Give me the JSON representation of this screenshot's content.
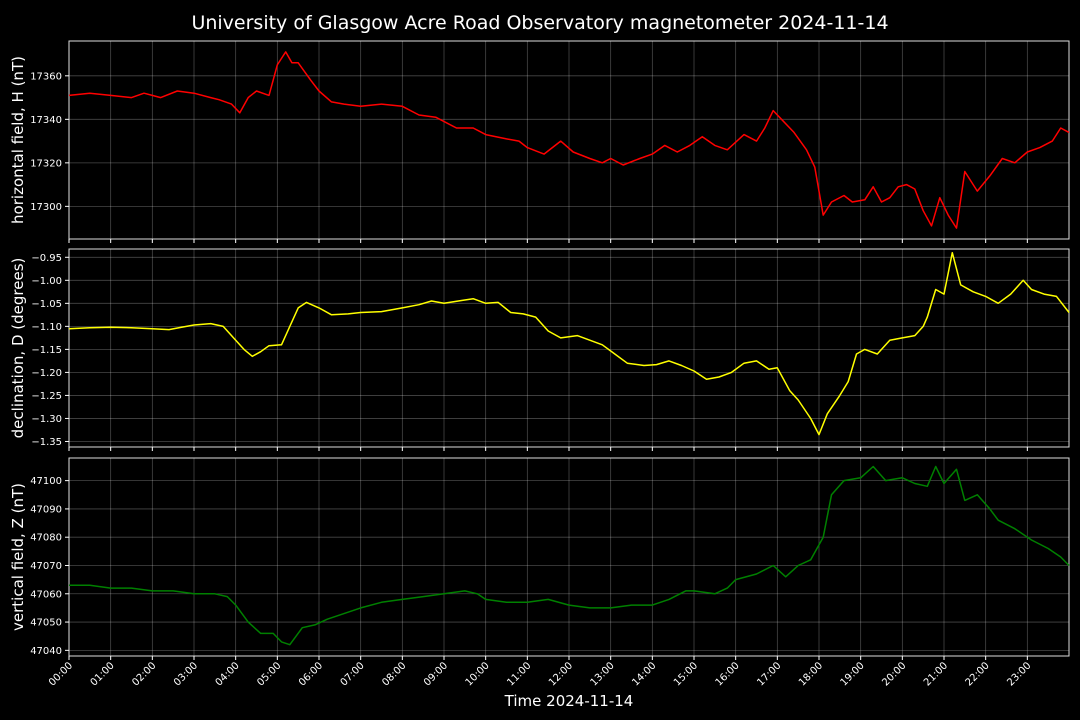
{
  "chart_data": {
    "type": "line",
    "title": "University of Glasgow Acre Road Observatory magnetometer 2024-11-14",
    "xlabel": "Time 2024-11-14",
    "x_ticks": [
      "00:00",
      "01:00",
      "02:00",
      "03:00",
      "04:00",
      "05:00",
      "06:00",
      "07:00",
      "08:00",
      "09:00",
      "10:00",
      "11:00",
      "12:00",
      "13:00",
      "14:00",
      "15:00",
      "16:00",
      "17:00",
      "18:00",
      "19:00",
      "20:00",
      "21:00",
      "22:00",
      "23:00"
    ],
    "xlim_hours": [
      0,
      24
    ],
    "panels": [
      {
        "ylabel": "horizontal field, H (nT)",
        "color": "#ff0000",
        "ylim": [
          17285,
          17376
        ],
        "yticks": [
          17300,
          17320,
          17340,
          17360
        ],
        "ytick_labels": [
          "17300",
          "17320",
          "17340",
          "17360"
        ],
        "grid": true,
        "points": [
          [
            0,
            17351
          ],
          [
            0.5,
            17352
          ],
          [
            1.0,
            17351
          ],
          [
            1.5,
            17350
          ],
          [
            1.8,
            17352
          ],
          [
            2.0,
            17351
          ],
          [
            2.2,
            17350
          ],
          [
            2.6,
            17353
          ],
          [
            3.0,
            17352
          ],
          [
            3.4,
            17350
          ],
          [
            3.6,
            17349
          ],
          [
            3.9,
            17347
          ],
          [
            4.1,
            17343
          ],
          [
            4.3,
            17350
          ],
          [
            4.5,
            17353
          ],
          [
            4.8,
            17351
          ],
          [
            5.0,
            17365
          ],
          [
            5.2,
            17371
          ],
          [
            5.35,
            17366
          ],
          [
            5.5,
            17366
          ],
          [
            5.8,
            17358
          ],
          [
            6.0,
            17353
          ],
          [
            6.3,
            17348
          ],
          [
            6.6,
            17347
          ],
          [
            7.0,
            17346
          ],
          [
            7.5,
            17347
          ],
          [
            8.0,
            17346
          ],
          [
            8.4,
            17342
          ],
          [
            8.8,
            17341
          ],
          [
            9.3,
            17336
          ],
          [
            9.7,
            17336
          ],
          [
            10.0,
            17333
          ],
          [
            10.5,
            17331
          ],
          [
            10.8,
            17330
          ],
          [
            11.0,
            17327
          ],
          [
            11.4,
            17324
          ],
          [
            11.8,
            17330
          ],
          [
            12.1,
            17325
          ],
          [
            12.5,
            17322
          ],
          [
            12.8,
            17320
          ],
          [
            13.0,
            17322
          ],
          [
            13.3,
            17319
          ],
          [
            13.7,
            17322
          ],
          [
            14.0,
            17324
          ],
          [
            14.3,
            17328
          ],
          [
            14.6,
            17325
          ],
          [
            14.9,
            17328
          ],
          [
            15.2,
            17332
          ],
          [
            15.5,
            17328
          ],
          [
            15.8,
            17326
          ],
          [
            16.2,
            17333
          ],
          [
            16.5,
            17330
          ],
          [
            16.7,
            17336
          ],
          [
            16.9,
            17344
          ],
          [
            17.1,
            17340
          ],
          [
            17.4,
            17334
          ],
          [
            17.7,
            17326
          ],
          [
            17.9,
            17318
          ],
          [
            18.1,
            17296
          ],
          [
            18.3,
            17302
          ],
          [
            18.6,
            17305
          ],
          [
            18.8,
            17302
          ],
          [
            19.1,
            17303
          ],
          [
            19.3,
            17309
          ],
          [
            19.5,
            17302
          ],
          [
            19.7,
            17304
          ],
          [
            19.9,
            17309
          ],
          [
            20.1,
            17310
          ],
          [
            20.3,
            17308
          ],
          [
            20.5,
            17298
          ],
          [
            20.7,
            17291
          ],
          [
            20.9,
            17304
          ],
          [
            21.1,
            17296
          ],
          [
            21.3,
            17290
          ],
          [
            21.5,
            17316
          ],
          [
            21.8,
            17307
          ],
          [
            22.1,
            17314
          ],
          [
            22.4,
            17322
          ],
          [
            22.7,
            17320
          ],
          [
            23.0,
            17325
          ],
          [
            23.3,
            17327
          ],
          [
            23.6,
            17330
          ],
          [
            23.8,
            17336
          ],
          [
            24.0,
            17334
          ]
        ]
      },
      {
        "ylabel": "declination, D (degrees)",
        "color": "#ffff00",
        "ylim": [
          -1.362,
          -0.932
        ],
        "yticks": [
          -1.35,
          -1.3,
          -1.25,
          -1.2,
          -1.15,
          -1.1,
          -1.05,
          -1.0,
          -0.95
        ],
        "ytick_labels": [
          "−1.35",
          "−1.30",
          "−1.25",
          "−1.20",
          "−1.15",
          "−1.10",
          "−1.05",
          "−1.00",
          "−0.95"
        ],
        "grid": true,
        "points": [
          [
            0,
            -1.105
          ],
          [
            0.5,
            -1.103
          ],
          [
            1.0,
            -1.102
          ],
          [
            1.5,
            -1.103
          ],
          [
            2.0,
            -1.105
          ],
          [
            2.4,
            -1.107
          ],
          [
            2.7,
            -1.102
          ],
          [
            3.0,
            -1.097
          ],
          [
            3.4,
            -1.094
          ],
          [
            3.7,
            -1.1
          ],
          [
            4.0,
            -1.13
          ],
          [
            4.2,
            -1.15
          ],
          [
            4.4,
            -1.165
          ],
          [
            4.6,
            -1.155
          ],
          [
            4.8,
            -1.142
          ],
          [
            5.1,
            -1.14
          ],
          [
            5.3,
            -1.1
          ],
          [
            5.5,
            -1.06
          ],
          [
            5.7,
            -1.048
          ],
          [
            6.0,
            -1.06
          ],
          [
            6.3,
            -1.075
          ],
          [
            6.7,
            -1.073
          ],
          [
            7.0,
            -1.07
          ],
          [
            7.5,
            -1.068
          ],
          [
            8.0,
            -1.06
          ],
          [
            8.4,
            -1.053
          ],
          [
            8.7,
            -1.045
          ],
          [
            9.0,
            -1.05
          ],
          [
            9.4,
            -1.044
          ],
          [
            9.7,
            -1.04
          ],
          [
            10.0,
            -1.05
          ],
          [
            10.3,
            -1.048
          ],
          [
            10.6,
            -1.07
          ],
          [
            10.9,
            -1.073
          ],
          [
            11.2,
            -1.08
          ],
          [
            11.5,
            -1.11
          ],
          [
            11.8,
            -1.125
          ],
          [
            12.2,
            -1.12
          ],
          [
            12.5,
            -1.13
          ],
          [
            12.8,
            -1.14
          ],
          [
            13.1,
            -1.16
          ],
          [
            13.4,
            -1.18
          ],
          [
            13.8,
            -1.185
          ],
          [
            14.1,
            -1.183
          ],
          [
            14.4,
            -1.175
          ],
          [
            14.7,
            -1.185
          ],
          [
            15.0,
            -1.197
          ],
          [
            15.3,
            -1.215
          ],
          [
            15.6,
            -1.21
          ],
          [
            15.9,
            -1.2
          ],
          [
            16.2,
            -1.18
          ],
          [
            16.5,
            -1.175
          ],
          [
            16.8,
            -1.193
          ],
          [
            17.0,
            -1.19
          ],
          [
            17.3,
            -1.24
          ],
          [
            17.5,
            -1.26
          ],
          [
            17.8,
            -1.3
          ],
          [
            18.0,
            -1.335
          ],
          [
            18.2,
            -1.29
          ],
          [
            18.5,
            -1.25
          ],
          [
            18.7,
            -1.22
          ],
          [
            18.9,
            -1.16
          ],
          [
            19.1,
            -1.15
          ],
          [
            19.4,
            -1.16
          ],
          [
            19.7,
            -1.13
          ],
          [
            20.0,
            -1.125
          ],
          [
            20.3,
            -1.12
          ],
          [
            20.5,
            -1.1
          ],
          [
            20.6,
            -1.08
          ],
          [
            20.8,
            -1.02
          ],
          [
            21.0,
            -1.03
          ],
          [
            21.2,
            -0.94
          ],
          [
            21.4,
            -1.01
          ],
          [
            21.7,
            -1.025
          ],
          [
            22.0,
            -1.035
          ],
          [
            22.3,
            -1.05
          ],
          [
            22.6,
            -1.03
          ],
          [
            22.9,
            -1.0
          ],
          [
            23.1,
            -1.02
          ],
          [
            23.4,
            -1.03
          ],
          [
            23.7,
            -1.035
          ],
          [
            24.0,
            -1.07
          ]
        ]
      },
      {
        "ylabel": "vertical field, Z (nT)",
        "color": "#008000",
        "ylim": [
          47038,
          47108
        ],
        "yticks": [
          47040,
          47050,
          47060,
          47070,
          47080,
          47090,
          47100
        ],
        "ytick_labels": [
          "47040",
          "47050",
          "47060",
          "47070",
          "47080",
          "47090",
          "47100"
        ],
        "grid": true,
        "points": [
          [
            0,
            47063
          ],
          [
            0.5,
            47063
          ],
          [
            1.0,
            47062
          ],
          [
            1.5,
            47062
          ],
          [
            2.0,
            47061
          ],
          [
            2.5,
            47061
          ],
          [
            3.0,
            47060
          ],
          [
            3.5,
            47060
          ],
          [
            3.8,
            47059
          ],
          [
            4.0,
            47056
          ],
          [
            4.3,
            47050
          ],
          [
            4.6,
            47046
          ],
          [
            4.9,
            47046
          ],
          [
            5.1,
            47043
          ],
          [
            5.3,
            47042
          ],
          [
            5.6,
            47048
          ],
          [
            5.9,
            47049
          ],
          [
            6.2,
            47051
          ],
          [
            6.6,
            47053
          ],
          [
            7.0,
            47055
          ],
          [
            7.5,
            47057
          ],
          [
            8.0,
            47058
          ],
          [
            8.5,
            47059
          ],
          [
            9.0,
            47060
          ],
          [
            9.5,
            47061
          ],
          [
            9.8,
            47060
          ],
          [
            10.0,
            47058
          ],
          [
            10.5,
            47057
          ],
          [
            11.0,
            47057
          ],
          [
            11.5,
            47058
          ],
          [
            12.0,
            47056
          ],
          [
            12.5,
            47055
          ],
          [
            13.0,
            47055
          ],
          [
            13.5,
            47056
          ],
          [
            14.0,
            47056
          ],
          [
            14.4,
            47058
          ],
          [
            14.8,
            47061
          ],
          [
            15.0,
            47061
          ],
          [
            15.5,
            47060
          ],
          [
            15.8,
            47062
          ],
          [
            16.0,
            47065
          ],
          [
            16.5,
            47067
          ],
          [
            16.9,
            47070
          ],
          [
            17.2,
            47066
          ],
          [
            17.5,
            47070
          ],
          [
            17.8,
            47072
          ],
          [
            18.1,
            47080
          ],
          [
            18.3,
            47095
          ],
          [
            18.6,
            47100
          ],
          [
            19.0,
            47101
          ],
          [
            19.3,
            47105
          ],
          [
            19.6,
            47100
          ],
          [
            20.0,
            47101
          ],
          [
            20.3,
            47099
          ],
          [
            20.6,
            47098
          ],
          [
            20.8,
            47105
          ],
          [
            21.0,
            47099
          ],
          [
            21.3,
            47104
          ],
          [
            21.5,
            47093
          ],
          [
            21.8,
            47095
          ],
          [
            22.1,
            47090
          ],
          [
            22.3,
            47086
          ],
          [
            22.7,
            47083
          ],
          [
            23.1,
            47079
          ],
          [
            23.5,
            47076
          ],
          [
            23.8,
            47073
          ],
          [
            24.0,
            47070
          ]
        ]
      }
    ]
  }
}
